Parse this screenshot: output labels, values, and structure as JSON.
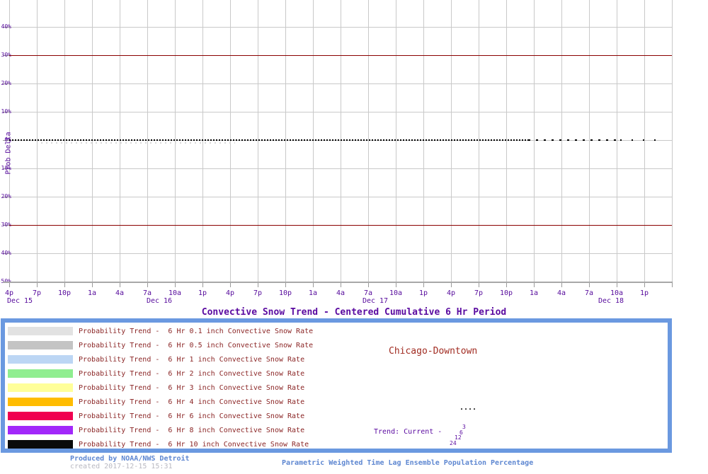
{
  "chart_data": {
    "type": "line",
    "title": "Convective Snow Trend - Centered Cumulative 6 Hr Period",
    "xlabel": "",
    "ylabel": "Prob Delta",
    "ylim": [
      -50,
      50
    ],
    "grid": true,
    "y_tick_values": [
      50,
      40,
      30,
      20,
      10,
      0,
      -10,
      -20,
      -30,
      -40,
      -50
    ],
    "y_tick_labels": [
      "50%",
      "40%",
      "30%",
      "20%",
      "10%",
      "0%",
      "-10%",
      "-20%",
      "-30%",
      "-40%",
      "-50%"
    ],
    "x_tick_labels": [
      "4p",
      "7p",
      "10p",
      "1a",
      "4a",
      "7a",
      "10a",
      "1p",
      "4p",
      "7p",
      "10p",
      "1a",
      "4a",
      "7a",
      "10a",
      "1p",
      "4p",
      "7p",
      "10p",
      "1a",
      "4a",
      "7a",
      "10a",
      "1p"
    ],
    "date_labels": [
      "Dec 15",
      "Dec 16",
      "Dec 17",
      "Dec 18"
    ],
    "reference_lines": [
      {
        "value": 30,
        "style": "solid",
        "color": "#8b0000"
      },
      {
        "value": -30,
        "style": "solid",
        "color": "#8b0000"
      },
      {
        "value": 0,
        "style": "dotted",
        "color": "#000000",
        "name": "current-trend-zero-line"
      }
    ],
    "series": [
      {
        "name": "6 Hr 0.1 inch Convective Snow Rate",
        "color": "#e2e2e2",
        "values": [
          0,
          0,
          0,
          0,
          0,
          0,
          0,
          0,
          0,
          0,
          0,
          0,
          0,
          0,
          0,
          0,
          0,
          0,
          0,
          0,
          0,
          0,
          0,
          0
        ]
      },
      {
        "name": "6 Hr 0.5 inch Convective Snow Rate",
        "color": "#c4c4c4",
        "values": [
          0,
          0,
          0,
          0,
          0,
          0,
          0,
          0,
          0,
          0,
          0,
          0,
          0,
          0,
          0,
          0,
          0,
          0,
          0,
          0,
          0,
          0,
          0,
          0
        ]
      },
      {
        "name": "6 Hr 1 inch Convective Snow Rate",
        "color": "#bcd6f4",
        "values": [
          0,
          0,
          0,
          0,
          0,
          0,
          0,
          0,
          0,
          0,
          0,
          0,
          0,
          0,
          0,
          0,
          0,
          0,
          0,
          0,
          0,
          0,
          0,
          0
        ]
      },
      {
        "name": "6 Hr 2 inch Convective Snow Rate",
        "color": "#90ee90",
        "values": [
          0,
          0,
          0,
          0,
          0,
          0,
          0,
          0,
          0,
          0,
          0,
          0,
          0,
          0,
          0,
          0,
          0,
          0,
          0,
          0,
          0,
          0,
          0,
          0
        ]
      },
      {
        "name": "6 Hr 3 inch Convective Snow Rate",
        "color": "#ffff99",
        "values": [
          0,
          0,
          0,
          0,
          0,
          0,
          0,
          0,
          0,
          0,
          0,
          0,
          0,
          0,
          0,
          0,
          0,
          0,
          0,
          0,
          0,
          0,
          0,
          0
        ]
      },
      {
        "name": "6 Hr 4 inch Convective Snow Rate",
        "color": "#ffbc00",
        "values": [
          0,
          0,
          0,
          0,
          0,
          0,
          0,
          0,
          0,
          0,
          0,
          0,
          0,
          0,
          0,
          0,
          0,
          0,
          0,
          0,
          0,
          0,
          0,
          0
        ]
      },
      {
        "name": "6 Hr 6 inch Convective Snow Rate",
        "color": "#f00050",
        "values": [
          0,
          0,
          0,
          0,
          0,
          0,
          0,
          0,
          0,
          0,
          0,
          0,
          0,
          0,
          0,
          0,
          0,
          0,
          0,
          0,
          0,
          0,
          0,
          0
        ]
      },
      {
        "name": "6 Hr 8 inch Convective Snow Rate",
        "color": "#a228fa",
        "values": [
          0,
          0,
          0,
          0,
          0,
          0,
          0,
          0,
          0,
          0,
          0,
          0,
          0,
          0,
          0,
          0,
          0,
          0,
          0,
          0,
          0,
          0,
          0,
          0
        ]
      },
      {
        "name": "6 Hr 10 inch Convective Snow Rate",
        "color": "#0a0a0a",
        "values": [
          0,
          0,
          0,
          0,
          0,
          0,
          0,
          0,
          0,
          0,
          0,
          0,
          0,
          0,
          0,
          0,
          0,
          0,
          0,
          0,
          0,
          0,
          0,
          0
        ]
      }
    ],
    "annotations": "All probability-trend series are flat at 0% delta; black dotted current-trend line lies on the 0% gridline, becoming sparse dashes near the right edge; faint gray dots sit just below 0% early in the period."
  },
  "legend": {
    "items": [
      {
        "color": "#e2e2e2",
        "label": "Probability Trend -  6 Hr 0.1 inch Convective Snow Rate"
      },
      {
        "color": "#c4c4c4",
        "label": "Probability Trend -  6 Hr 0.5 inch Convective Snow Rate"
      },
      {
        "color": "#bcd6f4",
        "label": "Probability Trend -  6 Hr 1 inch Convective Snow Rate"
      },
      {
        "color": "#90ee90",
        "label": "Probability Trend -  6 Hr 2 inch Convective Snow Rate"
      },
      {
        "color": "#ffff99",
        "label": "Probability Trend -  6 Hr 3 inch Convective Snow Rate"
      },
      {
        "color": "#ffbc00",
        "label": "Probability Trend -  6 Hr 4 inch Convective Snow Rate"
      },
      {
        "color": "#f00050",
        "label": "Probability Trend -  6 Hr 6 inch Convective Snow Rate"
      },
      {
        "color": "#a228fa",
        "label": "Probability Trend -  6 Hr 8 inch Convective Snow Rate"
      },
      {
        "color": "#0a0a0a",
        "label": "Probability Trend -  6 Hr 10 inch Convective Snow Rate"
      }
    ],
    "location": "Chicago-Downtown",
    "trend_label": "Trend: Current -",
    "dots_sample": "....",
    "trend_stack": [
      "3",
      "6",
      "12",
      "24"
    ]
  },
  "footer": {
    "produced_by": "Produced by NOAA/NWS Detroit",
    "created": "created 2017-12-15 15:31",
    "right_note": "Parametric Weighted Time Lag Ensemble Population Percentage"
  },
  "colors": {
    "grid": "#c9c9c9",
    "axis": "#a8a8a8",
    "tick": "#9a9a9a",
    "threshold_red": "#8b0000",
    "zero_dotted": "#000000",
    "faint_series": "#d9d9d9",
    "axis_text_purple": "#55099b",
    "title_purple": "#5a0aa0",
    "legend_text_red": "#8b2626",
    "location_red": "#a12c22",
    "legend_border_blue": "#6b99e0",
    "footer_blue": "#5e87d1",
    "footer_gray": "#b9b9c2"
  }
}
